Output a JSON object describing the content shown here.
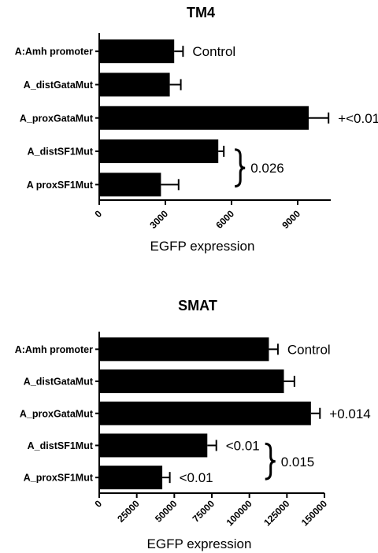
{
  "chart_data": [
    {
      "type": "bar",
      "orientation": "horizontal",
      "title": "TM4",
      "categories": [
        "A:Amh promoter",
        "A_distGataMut",
        "A_proxGataMut",
        "A_distSF1Mut",
        "A proxSF1Mut"
      ],
      "values": [
        3400,
        3200,
        9500,
        5400,
        2800
      ],
      "errors": [
        400,
        500,
        900,
        250,
        800
      ],
      "xlabel": "EGFP expression",
      "xlim": [
        0,
        10500
      ],
      "xticks": [
        "0",
        "3000",
        "6000",
        "9000"
      ],
      "xtick_values": [
        0,
        3000,
        6000,
        9000
      ],
      "annotations": [
        {
          "bar": 0,
          "text": "Control"
        },
        {
          "bar": 2,
          "text": "+<0.01"
        }
      ],
      "bracket": {
        "bars": [
          3,
          4
        ],
        "text": "0.026"
      }
    },
    {
      "type": "bar",
      "orientation": "horizontal",
      "title": "SMAT",
      "categories": [
        "A:Amh promoter",
        "A_distGataMut",
        "A_proxGataMut",
        "A_distSF1Mut",
        "A_proxSF1Mut"
      ],
      "values": [
        113000,
        123000,
        141000,
        72000,
        42000
      ],
      "errors": [
        6000,
        7000,
        6000,
        6000,
        5000
      ],
      "xlabel": "EGFP expression",
      "xlim": [
        0,
        150000
      ],
      "xticks": [
        "0",
        "25000",
        "50000",
        "75000",
        "100000",
        "125000",
        "150000"
      ],
      "xtick_values": [
        0,
        25000,
        50000,
        75000,
        100000,
        125000,
        150000
      ],
      "annotations": [
        {
          "bar": 0,
          "text": "Control"
        },
        {
          "bar": 2,
          "text": "+0.014"
        },
        {
          "bar": 3,
          "text": "<0.01"
        },
        {
          "bar": 4,
          "text": "<0.01"
        }
      ],
      "bracket": {
        "bars": [
          3,
          4
        ],
        "text": "0.015"
      }
    }
  ]
}
